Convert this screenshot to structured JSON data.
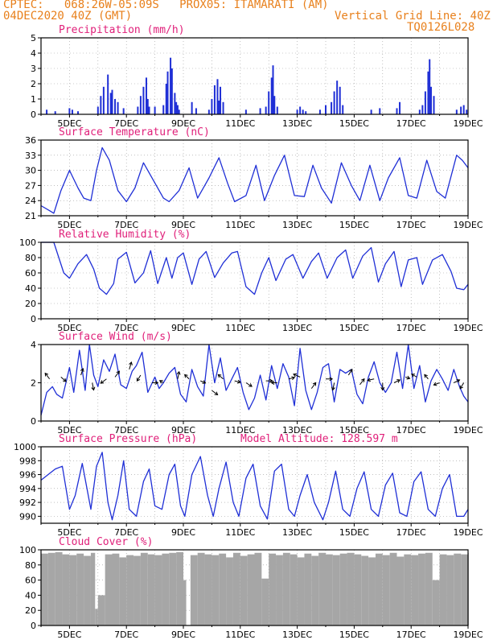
{
  "header": {
    "line1": "CPTEC:   068:26W-05:09S   PROX05: ITAMARATI (AM)",
    "line2_left": "04DEC2020 40Z (GMT)",
    "line2_right": "Vertical Grid Line: 40Z",
    "line3_right": "TQ0126L028"
  },
  "colors": {
    "line": "#1f2fd6",
    "cloud": "#a6a6a6",
    "title": "#e0207a",
    "header": "#e8801c"
  },
  "chart_data": [
    {
      "type": "bar",
      "title": "Precipitation (mm/h)",
      "ylim": [
        0,
        5
      ],
      "yticks": [
        0,
        1,
        2,
        3,
        4,
        5
      ],
      "xlim": [
        4,
        19
      ],
      "xticks": [
        "5DEC",
        "7DEC",
        "9DEC",
        "11DEC",
        "13DEC",
        "15DEC",
        "17DEC",
        "19DEC"
      ],
      "x": [
        4.2,
        4.5,
        5.0,
        5.1,
        5.3,
        6.0,
        6.1,
        6.2,
        6.35,
        6.45,
        6.5,
        6.6,
        6.7,
        6.9,
        7.4,
        7.5,
        7.6,
        7.7,
        7.75,
        7.8,
        8.0,
        8.3,
        8.4,
        8.45,
        8.55,
        8.6,
        8.7,
        8.75,
        8.8,
        8.85,
        9.3,
        9.45,
        9.9,
        10.0,
        10.1,
        10.2,
        10.25,
        10.3,
        10.4,
        11.2,
        11.7,
        11.9,
        12.0,
        12.1,
        12.15,
        12.2,
        12.3,
        13.0,
        13.1,
        13.2,
        13.3,
        13.8,
        14.0,
        14.2,
        14.3,
        14.4,
        14.5,
        14.6,
        15.6,
        15.9,
        16.5,
        16.6,
        17.3,
        17.4,
        17.5,
        17.6,
        17.65,
        17.7,
        17.8,
        18.6,
        18.75,
        18.85,
        18.95
      ],
      "values": [
        0.3,
        0.2,
        0.4,
        0.3,
        0.2,
        0.5,
        1.2,
        1.8,
        2.6,
        1.4,
        1.6,
        1.0,
        0.8,
        0.4,
        0.5,
        1.2,
        1.8,
        2.4,
        1.0,
        0.5,
        0.5,
        0.6,
        2.0,
        2.8,
        3.7,
        3.0,
        1.4,
        0.8,
        0.6,
        0.3,
        0.8,
        0.4,
        0.3,
        1.0,
        1.9,
        2.3,
        0.9,
        1.8,
        0.8,
        0.3,
        0.4,
        0.5,
        1.5,
        2.4,
        3.2,
        1.2,
        0.5,
        0.3,
        0.5,
        0.3,
        0.2,
        0.3,
        0.6,
        0.8,
        1.5,
        2.2,
        1.8,
        0.6,
        0.3,
        0.4,
        0.4,
        0.8,
        0.3,
        0.6,
        1.5,
        2.8,
        3.6,
        1.8,
        1.2,
        0.3,
        0.5,
        0.6,
        0.3
      ]
    },
    {
      "type": "line",
      "title": "Surface Temperature (nC)",
      "ylim": [
        21,
        36
      ],
      "yticks": [
        21,
        24,
        27,
        30,
        33,
        36
      ],
      "xlim": [
        4,
        19
      ],
      "xticks": [
        "5DEC",
        "7DEC",
        "9DEC",
        "11DEC",
        "13DEC",
        "15DEC",
        "17DEC",
        "19DEC"
      ],
      "x": [
        4.0,
        4.3,
        4.45,
        4.7,
        5.0,
        5.3,
        5.5,
        5.75,
        5.95,
        6.15,
        6.4,
        6.7,
        7.0,
        7.3,
        7.6,
        8.0,
        8.3,
        8.5,
        8.85,
        9.2,
        9.5,
        9.9,
        10.25,
        10.55,
        10.8,
        11.2,
        11.55,
        11.85,
        12.2,
        12.55,
        12.9,
        13.25,
        13.55,
        13.85,
        14.2,
        14.55,
        14.9,
        15.2,
        15.55,
        15.9,
        16.2,
        16.6,
        16.9,
        17.2,
        17.55,
        17.9,
        18.2,
        18.6,
        18.8,
        19.0
      ],
      "values": [
        23.0,
        22.0,
        21.5,
        26.0,
        30.0,
        26.5,
        24.5,
        24.0,
        30.0,
        34.5,
        32.0,
        26.0,
        23.8,
        26.5,
        31.5,
        27.5,
        24.5,
        23.8,
        26.0,
        30.5,
        24.5,
        28.5,
        32.5,
        27.5,
        23.8,
        25.0,
        31.0,
        24.0,
        29.0,
        33.0,
        25.0,
        24.8,
        31.0,
        26.5,
        23.5,
        31.5,
        27.0,
        24.0,
        31.0,
        24.0,
        28.5,
        32.5,
        25.0,
        24.5,
        32.0,
        25.8,
        24.5,
        33.0,
        32.0,
        30.5
      ]
    },
    {
      "type": "line",
      "title": "Relative Humidity (%)",
      "ylim": [
        0,
        100
      ],
      "yticks": [
        0,
        20,
        40,
        60,
        80,
        100
      ],
      "xlim": [
        4,
        19
      ],
      "xticks": [
        "5DEC",
        "7DEC",
        "9DEC",
        "11DEC",
        "13DEC",
        "15DEC",
        "17DEC",
        "19DEC"
      ],
      "x": [
        4.0,
        4.45,
        4.8,
        5.0,
        5.3,
        5.6,
        5.85,
        6.05,
        6.3,
        6.55,
        6.7,
        7.0,
        7.3,
        7.6,
        7.85,
        8.1,
        8.4,
        8.6,
        8.8,
        9.0,
        9.3,
        9.55,
        9.8,
        10.1,
        10.4,
        10.7,
        10.9,
        11.2,
        11.5,
        11.75,
        12.0,
        12.25,
        12.6,
        12.85,
        13.2,
        13.5,
        13.75,
        14.05,
        14.4,
        14.7,
        14.95,
        15.3,
        15.6,
        15.85,
        16.1,
        16.4,
        16.65,
        16.9,
        17.2,
        17.4,
        17.75,
        18.1,
        18.4,
        18.6,
        18.85,
        19.0
      ],
      "values": [
        100,
        100,
        60,
        53,
        72,
        84,
        65,
        40,
        32,
        46,
        78,
        87,
        47,
        60,
        89,
        46,
        80,
        53,
        80,
        86,
        45,
        78,
        88,
        54,
        73,
        86,
        88,
        42,
        32,
        60,
        80,
        50,
        78,
        84,
        53,
        75,
        86,
        53,
        80,
        90,
        53,
        82,
        93,
        48,
        72,
        88,
        42,
        77,
        80,
        45,
        77,
        84,
        62,
        40,
        38,
        45
      ]
    },
    {
      "type": "line",
      "title": "Surface Wind (m/s)",
      "ylim": [
        0,
        4
      ],
      "yticks": [
        0,
        2,
        4
      ],
      "xlim": [
        4,
        19
      ],
      "xticks": [
        "5DEC",
        "7DEC",
        "9DEC",
        "11DEC",
        "13DEC",
        "15DEC",
        "17DEC",
        "19DEC"
      ],
      "x": [
        4.0,
        4.2,
        4.4,
        4.55,
        4.75,
        5.0,
        5.15,
        5.35,
        5.55,
        5.7,
        5.85,
        6.0,
        6.2,
        6.4,
        6.6,
        6.8,
        7.0,
        7.2,
        7.35,
        7.55,
        7.75,
        8.0,
        8.15,
        8.3,
        8.5,
        8.7,
        8.9,
        9.1,
        9.3,
        9.5,
        9.7,
        9.9,
        10.1,
        10.3,
        10.5,
        10.7,
        10.9,
        11.1,
        11.3,
        11.5,
        11.7,
        11.9,
        12.1,
        12.3,
        12.5,
        12.7,
        12.9,
        13.1,
        13.3,
        13.5,
        13.7,
        13.9,
        14.1,
        14.3,
        14.5,
        14.7,
        14.9,
        15.1,
        15.3,
        15.5,
        15.7,
        15.9,
        16.1,
        16.3,
        16.5,
        16.7,
        16.9,
        17.1,
        17.3,
        17.5,
        17.7,
        17.9,
        18.1,
        18.3,
        18.5,
        18.7,
        18.85,
        19.0
      ],
      "values": [
        0.3,
        1.5,
        1.8,
        1.4,
        1.2,
        2.8,
        1.5,
        3.7,
        1.6,
        4.2,
        2.4,
        1.8,
        3.2,
        2.6,
        3.5,
        1.9,
        1.7,
        2.6,
        2.9,
        3.6,
        1.5,
        2.3,
        1.7,
        2.0,
        2.5,
        2.8,
        1.4,
        1.0,
        2.7,
        1.8,
        1.3,
        4.2,
        2.0,
        3.3,
        1.6,
        2.2,
        2.8,
        1.5,
        0.6,
        1.2,
        2.4,
        1.1,
        2.9,
        1.7,
        3.0,
        2.3,
        0.8,
        3.8,
        1.6,
        0.6,
        1.5,
        2.8,
        3.0,
        1.0,
        2.7,
        2.5,
        2.7,
        1.4,
        0.9,
        2.3,
        3.1,
        2.0,
        1.5,
        2.0,
        3.6,
        1.7,
        4.2,
        1.7,
        2.9,
        1.0,
        2.1,
        2.7,
        2.2,
        1.6,
        2.7,
        1.8,
        1.3,
        1.0
      ],
      "vectors": [
        {
          "x": 4.3,
          "y": 2.2,
          "u": -0.6,
          "v": 0.8
        },
        {
          "x": 4.7,
          "y": 2.3,
          "u": 0.7,
          "v": -0.6
        },
        {
          "x": 5.4,
          "y": 2.4,
          "u": 0.3,
          "v": 0.9
        },
        {
          "x": 5.8,
          "y": 2.0,
          "u": 0.2,
          "v": -1.0
        },
        {
          "x": 6.3,
          "y": 2.2,
          "u": -0.8,
          "v": -0.6
        },
        {
          "x": 6.6,
          "y": 2.3,
          "u": 0.6,
          "v": 0.8
        },
        {
          "x": 7.1,
          "y": 2.7,
          "u": 0.3,
          "v": 1.0
        },
        {
          "x": 7.5,
          "y": 2.4,
          "u": -0.5,
          "v": -0.8
        },
        {
          "x": 7.9,
          "y": 2.0,
          "u": 0.8,
          "v": 0.0
        },
        {
          "x": 8.3,
          "y": 2.0,
          "u": -0.5,
          "v": 0.3
        },
        {
          "x": 8.8,
          "y": 2.2,
          "u": 0.2,
          "v": 1.0
        },
        {
          "x": 9.2,
          "y": 2.2,
          "u": -0.6,
          "v": 0.6
        },
        {
          "x": 9.6,
          "y": 2.1,
          "u": 0.7,
          "v": -0.3
        },
        {
          "x": 10.0,
          "y": 1.6,
          "u": 0.8,
          "v": -0.6
        },
        {
          "x": 10.4,
          "y": 2.2,
          "u": -0.7,
          "v": 0.6
        },
        {
          "x": 10.8,
          "y": 2.1,
          "u": 0.8,
          "v": -0.2
        },
        {
          "x": 11.2,
          "y": 2.0,
          "u": 0.8,
          "v": -0.5
        },
        {
          "x": 11.9,
          "y": 2.1,
          "u": 0.9,
          "v": 0.0
        },
        {
          "x": 12.3,
          "y": 2.0,
          "u": -0.8,
          "v": 0.0
        },
        {
          "x": 12.7,
          "y": 2.2,
          "u": 0.8,
          "v": 0.2
        },
        {
          "x": 13.1,
          "y": 2.3,
          "u": -0.9,
          "v": 0.4
        },
        {
          "x": 13.5,
          "y": 1.7,
          "u": 0.6,
          "v": 0.8
        },
        {
          "x": 14.0,
          "y": 2.2,
          "u": 0.9,
          "v": 0.0
        },
        {
          "x": 14.3,
          "y": 2.0,
          "u": -0.2,
          "v": -1.0
        },
        {
          "x": 14.8,
          "y": 2.4,
          "u": 0.5,
          "v": 0.8
        },
        {
          "x": 15.2,
          "y": 1.9,
          "u": 0.6,
          "v": 0.8
        },
        {
          "x": 15.7,
          "y": 2.2,
          "u": -0.9,
          "v": -0.2
        },
        {
          "x": 16.0,
          "y": 2.0,
          "u": 0.0,
          "v": -1.0
        },
        {
          "x": 16.4,
          "y": 2.0,
          "u": 0.8,
          "v": 0.4
        },
        {
          "x": 16.8,
          "y": 2.3,
          "u": 0.6,
          "v": -0.2
        },
        {
          "x": 17.2,
          "y": 2.3,
          "u": -0.7,
          "v": 0.4
        },
        {
          "x": 17.6,
          "y": 2.2,
          "u": -0.5,
          "v": 0.6
        },
        {
          "x": 18.0,
          "y": 2.0,
          "u": -0.8,
          "v": -0.3
        },
        {
          "x": 18.5,
          "y": 2.0,
          "u": 0.8,
          "v": 0.4
        },
        {
          "x": 18.85,
          "y": 2.0,
          "u": -0.5,
          "v": -0.8
        }
      ]
    },
    {
      "type": "line",
      "title": "Surface Pressure (hPa)",
      "annotation": "Model Altitude: 128.597 m",
      "ylim": [
        989,
        1000
      ],
      "yticks": [
        990,
        992,
        994,
        996,
        998,
        1000
      ],
      "xlim": [
        4,
        19
      ],
      "xticks": [
        "5DEC",
        "7DEC",
        "9DEC",
        "11DEC",
        "13DEC",
        "15DEC",
        "17DEC",
        "19DEC"
      ],
      "x": [
        4.0,
        4.25,
        4.5,
        4.75,
        5.0,
        5.2,
        5.45,
        5.75,
        5.95,
        6.15,
        6.35,
        6.5,
        6.7,
        6.9,
        7.1,
        7.35,
        7.6,
        7.8,
        8.0,
        8.25,
        8.5,
        8.7,
        8.9,
        9.05,
        9.3,
        9.6,
        9.85,
        10.05,
        10.25,
        10.5,
        10.75,
        10.95,
        11.2,
        11.45,
        11.7,
        11.95,
        12.2,
        12.45,
        12.7,
        12.9,
        13.1,
        13.35,
        13.6,
        13.9,
        14.1,
        14.35,
        14.6,
        14.85,
        15.1,
        15.35,
        15.6,
        15.85,
        16.1,
        16.35,
        16.6,
        16.85,
        17.1,
        17.35,
        17.6,
        17.85,
        18.1,
        18.35,
        18.6,
        18.85,
        19.0
      ],
      "values": [
        995.2,
        996.0,
        996.8,
        997.2,
        991.0,
        993.0,
        997.6,
        991.0,
        997.2,
        999.2,
        992.0,
        989.5,
        993.0,
        998.0,
        991.0,
        990.0,
        995.0,
        996.8,
        991.5,
        991.0,
        996.0,
        997.5,
        991.5,
        990.0,
        996.0,
        998.6,
        993.0,
        990.0,
        994.0,
        997.8,
        992.0,
        990.0,
        995.5,
        997.5,
        991.5,
        989.6,
        996.5,
        997.5,
        991.0,
        990.0,
        993.0,
        996.0,
        992.0,
        989.5,
        992.0,
        996.5,
        991.0,
        990.0,
        994.0,
        996.4,
        991.0,
        990.0,
        994.5,
        996.2,
        990.5,
        990.0,
        995.0,
        996.4,
        991.0,
        990.0,
        994.0,
        996.0,
        990.0,
        990.0,
        991.0
      ]
    },
    {
      "type": "bar",
      "title": "Cloud Cover (%)",
      "ylim": [
        0,
        100
      ],
      "yticks": [
        0,
        20,
        40,
        60,
        80,
        100
      ],
      "xlim": [
        4,
        19
      ],
      "xticks": [
        "5DEC",
        "7DEC",
        "9DEC",
        "11DEC",
        "13DEC",
        "15DEC",
        "17DEC",
        "19DEC"
      ],
      "x": [
        4.0,
        4.25,
        4.5,
        4.75,
        5.0,
        5.25,
        5.5,
        5.75,
        5.9,
        6.0,
        6.25,
        6.5,
        6.75,
        7.0,
        7.25,
        7.5,
        7.75,
        8.0,
        8.25,
        8.5,
        8.75,
        9.0,
        9.1,
        9.25,
        9.5,
        9.75,
        10.0,
        10.25,
        10.5,
        10.75,
        11.0,
        11.25,
        11.5,
        11.75,
        12.0,
        12.25,
        12.5,
        12.75,
        13.0,
        13.25,
        13.5,
        13.75,
        14.0,
        14.25,
        14.5,
        14.75,
        15.0,
        15.25,
        15.5,
        15.75,
        16.0,
        16.25,
        16.5,
        16.75,
        17.0,
        17.25,
        17.5,
        17.75,
        18.0,
        18.25,
        18.5,
        18.75,
        19.0
      ],
      "values": [
        95,
        96,
        97,
        94,
        93,
        95,
        92,
        96,
        22,
        40,
        94,
        95,
        90,
        93,
        92,
        96,
        94,
        93,
        95,
        96,
        97,
        60,
        0,
        93,
        96,
        94,
        93,
        95,
        90,
        96,
        92,
        94,
        96,
        62,
        95,
        93,
        96,
        94,
        90,
        95,
        92,
        96,
        94,
        93,
        95,
        96,
        94,
        92,
        90,
        95,
        93,
        96,
        91,
        94,
        93,
        95,
        96,
        60,
        94,
        93,
        95,
        94,
        96
      ]
    }
  ]
}
